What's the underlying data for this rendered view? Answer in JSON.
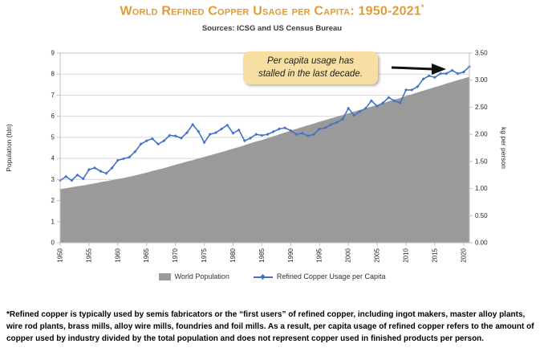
{
  "title": "World Refined Copper Usage per Capita: 1950-2021",
  "title_superscript": "*",
  "subtitle": "Sources: ICSG and US Census Bureau",
  "annotation": {
    "line1": "Per capita usage has",
    "line2": "stalled in the last decade."
  },
  "footnote": "*Refined copper is typically used by semis fabricators or the “first users” of refined copper, including ingot makers, master alloy plants, wire rod plants, brass mills, alloy wire mills, foundries and foil mills. As a result, per capita usage of refined copper refers to the amount of copper used by industry divided by the total population and does not represent copper used in finished products per person.",
  "colors": {
    "title": "#E09B38",
    "callout_bg": "#F7DFA3",
    "grid": "#D9D9D9",
    "axis_border": "#BFBFBF",
    "arrow": "#111111",
    "area": "#9A9A9A",
    "line": "#4472C4"
  },
  "chart_data": {
    "type": "area+line",
    "title": "World Refined Copper Usage per Capita: 1950-2021",
    "x": [
      1950,
      1951,
      1952,
      1953,
      1954,
      1955,
      1956,
      1957,
      1958,
      1959,
      1960,
      1961,
      1962,
      1963,
      1964,
      1965,
      1966,
      1967,
      1968,
      1969,
      1970,
      1971,
      1972,
      1973,
      1974,
      1975,
      1976,
      1977,
      1978,
      1979,
      1980,
      1981,
      1982,
      1983,
      1984,
      1985,
      1986,
      1987,
      1988,
      1989,
      1990,
      1991,
      1992,
      1993,
      1994,
      1995,
      1996,
      1997,
      1998,
      1999,
      2000,
      2001,
      2002,
      2003,
      2004,
      2005,
      2006,
      2007,
      2008,
      2009,
      2010,
      2011,
      2012,
      2013,
      2014,
      2015,
      2016,
      2017,
      2018,
      2019,
      2020,
      2021
    ],
    "series": [
      {
        "name": "World Population",
        "type": "area",
        "axis": "left",
        "color": "#9A9A9A",
        "values": [
          2.54,
          2.58,
          2.63,
          2.68,
          2.72,
          2.77,
          2.82,
          2.87,
          2.92,
          2.97,
          3.02,
          3.07,
          3.13,
          3.19,
          3.26,
          3.32,
          3.4,
          3.47,
          3.54,
          3.62,
          3.7,
          3.77,
          3.85,
          3.92,
          4.0,
          4.07,
          4.15,
          4.22,
          4.3,
          4.38,
          4.46,
          4.54,
          4.63,
          4.72,
          4.8,
          4.87,
          4.96,
          5.05,
          5.14,
          5.23,
          5.32,
          5.4,
          5.49,
          5.57,
          5.65,
          5.74,
          5.82,
          5.9,
          5.98,
          6.06,
          6.14,
          6.22,
          6.3,
          6.38,
          6.46,
          6.54,
          6.62,
          6.71,
          6.79,
          6.87,
          6.96,
          7.04,
          7.13,
          7.21,
          7.3,
          7.38,
          7.46,
          7.55,
          7.63,
          7.71,
          7.79,
          7.87
        ]
      },
      {
        "name": "Refined Copper Usage per Capita",
        "type": "line",
        "axis": "right",
        "color": "#4472C4",
        "values": [
          1.15,
          1.22,
          1.15,
          1.25,
          1.18,
          1.35,
          1.38,
          1.32,
          1.28,
          1.38,
          1.52,
          1.55,
          1.58,
          1.68,
          1.82,
          1.88,
          1.92,
          1.82,
          1.88,
          1.98,
          1.97,
          1.93,
          2.03,
          2.18,
          2.05,
          1.85,
          2.0,
          2.03,
          2.1,
          2.17,
          2.02,
          2.08,
          1.88,
          1.93,
          2.0,
          1.98,
          2.0,
          2.05,
          2.1,
          2.12,
          2.07,
          2.0,
          2.02,
          1.97,
          2.0,
          2.1,
          2.12,
          2.18,
          2.22,
          2.28,
          2.48,
          2.35,
          2.42,
          2.48,
          2.62,
          2.52,
          2.58,
          2.68,
          2.62,
          2.58,
          2.82,
          2.82,
          2.88,
          3.02,
          3.08,
          3.05,
          3.12,
          3.12,
          3.18,
          3.12,
          3.15,
          3.25
        ]
      }
    ],
    "left_axis": {
      "label": "Population (bln)",
      "min": 0,
      "max": 9,
      "step": 1
    },
    "right_axis": {
      "label": "kg per person",
      "min": 0,
      "max": 3.5,
      "step": 0.5,
      "decimals": 2
    },
    "x_ticks": [
      1950,
      1955,
      1960,
      1965,
      1970,
      1975,
      1980,
      1985,
      1990,
      1995,
      2000,
      2005,
      2010,
      2015,
      2020
    ],
    "grid": "horizontal",
    "legend_position": "bottom"
  }
}
